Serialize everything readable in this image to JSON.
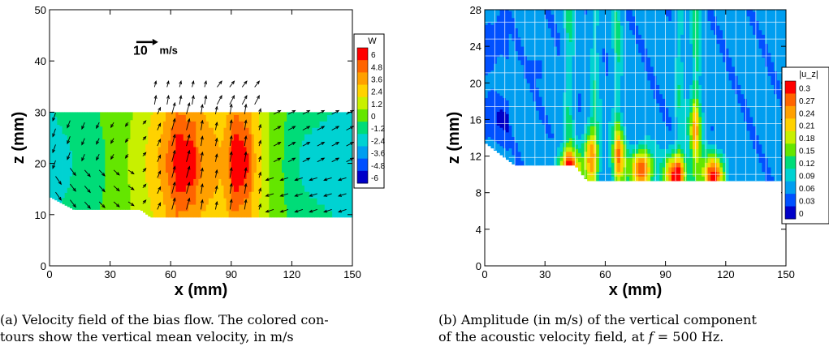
{
  "chart_data": [
    {
      "type": "heatmap",
      "subtype": "contour-with-vector-field",
      "xlabel": "x (mm)",
      "ylabel": "z (mm)",
      "xlim": [
        0,
        150
      ],
      "ylim": [
        0,
        50
      ],
      "xticks": [
        0,
        30,
        60,
        90,
        120,
        150
      ],
      "yticks": [
        0,
        10,
        20,
        30,
        40,
        50
      ],
      "reference_vector": {
        "value": "10",
        "unit": "m/s"
      },
      "colorbar": {
        "title": "W",
        "levels": [
          "6",
          "4.8",
          "3.6",
          "2.4",
          "1.2",
          "0",
          "-1.2",
          "-2.4",
          "-3.6",
          "-4.8",
          "-6"
        ],
        "colors": [
          "#ff0000",
          "#ff6400",
          "#ffa000",
          "#ffd200",
          "#c8f000",
          "#64e600",
          "#00dc78",
          "#00d2d2",
          "#009ef0",
          "#0050ff",
          "#0000c8"
        ]
      },
      "w_profile_x": [
        0,
        15,
        30,
        45,
        55,
        62,
        72,
        85,
        92,
        100,
        110,
        125,
        150
      ],
      "w_profile": [
        -2.4,
        -1.4,
        -0.4,
        1.2,
        3.0,
        5.0,
        4.2,
        2.8,
        4.8,
        3.4,
        0.2,
        -1.8,
        -2.6
      ],
      "domain_bottom": [
        [
          0,
          13.5
        ],
        [
          12,
          11
        ],
        [
          45,
          11
        ],
        [
          50,
          9.5
        ],
        [
          150,
          9.5
        ]
      ],
      "domain_top": 30
    },
    {
      "type": "heatmap",
      "xlabel": "x (mm)",
      "ylabel": "z (mm)",
      "xlim": [
        0,
        150
      ],
      "ylim": [
        0,
        28
      ],
      "xticks": [
        0,
        30,
        60,
        90,
        120,
        150
      ],
      "yticks": [
        0,
        4,
        8,
        12,
        16,
        20,
        24,
        28
      ],
      "grid": true,
      "colorbar": {
        "title": "|u_z|",
        "levels": [
          "0.3",
          "0.27",
          "0.24",
          "0.21",
          "0.18",
          "0.15",
          "0.12",
          "0.09",
          "0.06",
          "0.03",
          "0"
        ],
        "colors": [
          "#ff0000",
          "#ff6400",
          "#ffa000",
          "#ffd200",
          "#c8f000",
          "#64e600",
          "#00dc78",
          "#00d2d2",
          "#009ef0",
          "#0050ff",
          "#0000c8"
        ]
      },
      "peaks": [
        {
          "x": 42,
          "z": 10.5,
          "value": 0.3
        },
        {
          "x": 53,
          "z": 12,
          "value": 0.24
        },
        {
          "x": 67,
          "z": 12,
          "value": 0.21
        },
        {
          "x": 78,
          "z": 10.5,
          "value": 0.3
        },
        {
          "x": 95,
          "z": 10,
          "value": 0.3
        },
        {
          "x": 105,
          "z": 15,
          "value": 0.18
        },
        {
          "x": 114,
          "z": 10,
          "value": 0.3
        }
      ],
      "domain_bottom": [
        [
          0,
          13.5
        ],
        [
          15,
          11
        ],
        [
          45,
          11
        ],
        [
          51,
          9.3
        ],
        [
          150,
          9.3
        ]
      ],
      "domain_top": 28
    }
  ],
  "captions": {
    "a": [
      "(a) Velocity field of the bias flow. The colored con-",
      "tours show the vertical mean velocity, in m/s"
    ],
    "b1": "(b) Amplitude (in m/s) of the vertical component",
    "b2_pre": "of the acoustic velocity field, at ",
    "b2_var": "f",
    "b2_post": " = 500 Hz."
  }
}
